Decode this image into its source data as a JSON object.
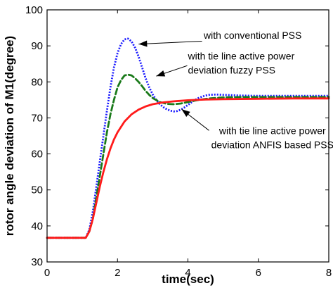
{
  "chart_data": {
    "type": "line",
    "xlabel": "time(sec)",
    "ylabel": "rotor angle deviation of M1(degree)",
    "xlim": [
      0,
      8
    ],
    "ylim": [
      30,
      100
    ],
    "xticks": [
      "0",
      "2",
      "4",
      "6",
      "8"
    ],
    "yticks": [
      "30",
      "40",
      "50",
      "60",
      "70",
      "80",
      "90",
      "100"
    ],
    "grid": false,
    "series": [
      {
        "id": "conventional",
        "color": "#1a1aff",
        "style": "dotted",
        "x": [
          0,
          1.1,
          1.2,
          1.3,
          1.4,
          1.5,
          1.6,
          1.7,
          1.8,
          1.9,
          2.0,
          2.1,
          2.2,
          2.3,
          2.4,
          2.5,
          2.6,
          2.7,
          2.8,
          2.9,
          3.0,
          3.1,
          3.2,
          3.3,
          3.4,
          3.5,
          3.6,
          3.7,
          3.8,
          3.9,
          4.0,
          4.1,
          4.2,
          4.3,
          4.4,
          4.5,
          4.6,
          4.8,
          5.0,
          5.5,
          6.0,
          6.5,
          7.0,
          8.0
        ],
        "y": [
          36.7,
          36.7,
          39,
          44,
          51,
          58,
          65,
          72,
          78.5,
          84,
          88,
          90.5,
          91.8,
          92,
          91.2,
          89.5,
          87,
          84,
          81,
          78.5,
          76.5,
          75,
          73.8,
          73,
          72.4,
          72,
          71.8,
          71.9,
          72.3,
          72.9,
          73.6,
          74.3,
          75,
          75.5,
          75.9,
          76.2,
          76.4,
          76.5,
          76.4,
          76.2,
          76.1,
          76.1,
          76.1,
          76.1
        ]
      },
      {
        "id": "fuzzy",
        "color": "#1a7a1a",
        "style": "dashed",
        "x": [
          0,
          1.1,
          1.2,
          1.3,
          1.4,
          1.5,
          1.6,
          1.7,
          1.8,
          1.9,
          2.0,
          2.1,
          2.2,
          2.3,
          2.4,
          2.5,
          2.6,
          2.7,
          2.8,
          2.9,
          3.0,
          3.2,
          3.4,
          3.6,
          3.8,
          4.0,
          4.3,
          4.6,
          5.0,
          5.5,
          6.0,
          7.0,
          8.0
        ],
        "y": [
          36.7,
          36.7,
          38.5,
          42,
          48,
          54,
          60,
          66,
          71,
          75,
          78.5,
          80.5,
          81.8,
          82,
          81.8,
          81,
          80,
          78.8,
          77.5,
          76.4,
          75.5,
          74.4,
          73.9,
          73.8,
          74,
          74.4,
          75,
          75.4,
          75.7,
          75.8,
          75.8,
          75.8,
          75.8
        ]
      },
      {
        "id": "anfis",
        "color": "#ff1a1a",
        "style": "solid",
        "x": [
          0,
          1.1,
          1.2,
          1.3,
          1.4,
          1.5,
          1.6,
          1.7,
          1.8,
          1.9,
          2.0,
          2.2,
          2.4,
          2.6,
          2.8,
          3.0,
          3.3,
          3.6,
          4.0,
          4.5,
          5.0,
          6.0,
          7.0,
          8.0
        ],
        "y": [
          36.7,
          36.7,
          38.5,
          42,
          46.5,
          51,
          55,
          58.5,
          61.5,
          64,
          66,
          69,
          71,
          72.3,
          73.2,
          73.8,
          74.3,
          74.6,
          74.9,
          75.1,
          75.2,
          75.3,
          75.4,
          75.4
        ]
      }
    ],
    "annotations": [
      {
        "lines": [
          "with conventional PSS"
        ],
        "text_x": 4.45,
        "text_y": 92,
        "anchor": "start",
        "arrow_from": [
          4.4,
          91.3
        ],
        "arrow_to": [
          2.6,
          90.5
        ]
      },
      {
        "lines": [
          "with tie line active power",
          "deviation fuzzy PSS"
        ],
        "text_x": 4.0,
        "text_y": 86.2,
        "anchor": "start",
        "arrow_from": [
          3.98,
          84.5
        ],
        "arrow_to": [
          3.1,
          81.6
        ]
      },
      {
        "lines": [
          "with tie line active power",
          "deviation ANFIS based PSS"
        ],
        "text_x": 6.4,
        "text_y": 65.5,
        "anchor": "middle",
        "arrow_from": [
          4.6,
          66.5
        ],
        "arrow_to": [
          3.82,
          72.4
        ]
      }
    ]
  }
}
